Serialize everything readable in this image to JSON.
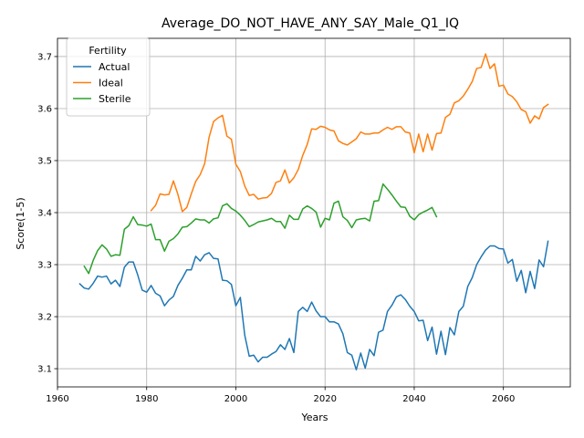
{
  "chart_data": {
    "type": "line",
    "title": "Average_DO_NOT_HAVE_ANY_SAY_Male_Q1_IQ",
    "xlabel": "Years",
    "ylabel": "Score(1-5)",
    "xlim": [
      1960,
      2075
    ],
    "ylim": [
      3.065,
      3.735
    ],
    "xticks": [
      1960,
      1980,
      2000,
      2020,
      2040,
      2060
    ],
    "yticks": [
      3.1,
      3.2,
      3.3,
      3.4,
      3.5,
      3.6,
      3.7
    ],
    "grid": true,
    "legend": {
      "title": "Fertility",
      "placement": "top-left"
    },
    "series": [
      {
        "name": "Actual",
        "color": "#1f77b4",
        "x": [
          1965,
          1966,
          1967,
          1968,
          1969,
          1970,
          1971,
          1972,
          1973,
          1974,
          1975,
          1976,
          1977,
          1978,
          1979,
          1980,
          1981,
          1982,
          1983,
          1984,
          1985,
          1986,
          1987,
          1988,
          1989,
          1990,
          1991,
          1992,
          1993,
          1994,
          1995,
          1996,
          1997,
          1998,
          1999,
          2000,
          2001,
          2002,
          2003,
          2004,
          2005,
          2006,
          2007,
          2008,
          2009,
          2010,
          2011,
          2012,
          2013,
          2014,
          2015,
          2016,
          2017,
          2018,
          2019,
          2020,
          2021,
          2022,
          2023,
          2024,
          2025,
          2026,
          2027,
          2028,
          2029,
          2030,
          2031,
          2032,
          2033,
          2034,
          2035,
          2036,
          2037,
          2038,
          2039,
          2040,
          2041,
          2042,
          2043,
          2044,
          2045,
          2046,
          2047,
          2048,
          2049,
          2050,
          2051,
          2052,
          2053,
          2054,
          2055,
          2056,
          2057,
          2058,
          2059,
          2060,
          2061,
          2062,
          2063,
          2064,
          2065,
          2066,
          2067,
          2068,
          2069,
          2070
        ],
        "values": [
          3.263,
          3.255,
          3.253,
          3.264,
          3.278,
          3.276,
          3.278,
          3.263,
          3.27,
          3.258,
          3.295,
          3.305,
          3.305,
          3.28,
          3.251,
          3.247,
          3.26,
          3.245,
          3.24,
          3.221,
          3.232,
          3.239,
          3.26,
          3.274,
          3.29,
          3.29,
          3.316,
          3.307,
          3.319,
          3.323,
          3.312,
          3.311,
          3.27,
          3.269,
          3.262,
          3.221,
          3.237,
          3.164,
          3.124,
          3.126,
          3.113,
          3.122,
          3.122,
          3.128,
          3.133,
          3.146,
          3.137,
          3.158,
          3.131,
          3.21,
          3.218,
          3.21,
          3.228,
          3.211,
          3.2,
          3.2,
          3.19,
          3.19,
          3.186,
          3.167,
          3.131,
          3.126,
          3.098,
          3.13,
          3.101,
          3.137,
          3.125,
          3.17,
          3.174,
          3.21,
          3.222,
          3.238,
          3.242,
          3.233,
          3.22,
          3.21,
          3.192,
          3.193,
          3.154,
          3.18,
          3.128,
          3.172,
          3.127,
          3.179,
          3.165,
          3.21,
          3.22,
          3.258,
          3.275,
          3.3,
          3.315,
          3.328,
          3.336,
          3.336,
          3.331,
          3.33,
          3.303,
          3.31,
          3.268,
          3.289,
          3.246,
          3.287,
          3.254,
          3.309,
          3.296,
          3.345
        ]
      },
      {
        "name": "Ideal",
        "color": "#ff7f0e",
        "x": [
          1981,
          1982,
          1983,
          1984,
          1985,
          1986,
          1987,
          1988,
          1989,
          1990,
          1991,
          1992,
          1993,
          1994,
          1995,
          1996,
          1997,
          1998,
          1999,
          2000,
          2001,
          2002,
          2003,
          2004,
          2005,
          2006,
          2007,
          2008,
          2009,
          2010,
          2011,
          2012,
          2013,
          2014,
          2015,
          2016,
          2017,
          2018,
          2019,
          2020,
          2021,
          2022,
          2023,
          2024,
          2025,
          2026,
          2027,
          2028,
          2029,
          2030,
          2031,
          2032,
          2033,
          2034,
          2035,
          2036,
          2037,
          2038,
          2039,
          2040,
          2041,
          2042,
          2043,
          2044,
          2045,
          2046,
          2047,
          2048,
          2049,
          2050,
          2051,
          2052,
          2053,
          2054,
          2055,
          2056,
          2057,
          2058,
          2059,
          2060,
          2061,
          2062,
          2063,
          2064,
          2065,
          2066,
          2067,
          2068,
          2069,
          2070
        ],
        "values": [
          3.404,
          3.414,
          3.436,
          3.434,
          3.435,
          3.461,
          3.435,
          3.402,
          3.41,
          3.436,
          3.46,
          3.473,
          3.494,
          3.545,
          3.575,
          3.582,
          3.587,
          3.547,
          3.541,
          3.493,
          3.479,
          3.451,
          3.433,
          3.435,
          3.426,
          3.428,
          3.429,
          3.437,
          3.458,
          3.461,
          3.482,
          3.457,
          3.467,
          3.483,
          3.51,
          3.531,
          3.561,
          3.56,
          3.566,
          3.564,
          3.559,
          3.557,
          3.538,
          3.533,
          3.53,
          3.536,
          3.542,
          3.555,
          3.551,
          3.551,
          3.553,
          3.553,
          3.559,
          3.564,
          3.56,
          3.565,
          3.565,
          3.555,
          3.553,
          3.515,
          3.551,
          3.517,
          3.551,
          3.52,
          3.552,
          3.553,
          3.583,
          3.589,
          3.611,
          3.615,
          3.624,
          3.637,
          3.652,
          3.677,
          3.679,
          3.705,
          3.677,
          3.686,
          3.643,
          3.645,
          3.628,
          3.623,
          3.613,
          3.598,
          3.594,
          3.572,
          3.586,
          3.58,
          3.602,
          3.608
        ]
      },
      {
        "name": "Sterile",
        "color": "#2ca02c",
        "x": [
          1966,
          1967,
          1968,
          1969,
          1970,
          1971,
          1972,
          1973,
          1974,
          1975,
          1976,
          1977,
          1978,
          1979,
          1980,
          1981,
          1982,
          1983,
          1984,
          1985,
          1986,
          1987,
          1988,
          1989,
          1990,
          1991,
          1992,
          1993,
          1994,
          1995,
          1996,
          1997,
          1998,
          1999,
          2000,
          2001,
          2002,
          2003,
          2004,
          2005,
          2006,
          2007,
          2008,
          2009,
          2010,
          2011,
          2012,
          2013,
          2014,
          2015,
          2016,
          2017,
          2018,
          2019,
          2020,
          2021,
          2022,
          2023,
          2024,
          2025,
          2026,
          2027,
          2028,
          2029,
          2030,
          2031,
          2032,
          2033,
          2034,
          2035,
          2036,
          2037,
          2038,
          2039,
          2040,
          2041,
          2042,
          2043,
          2044,
          2045
        ],
        "values": [
          3.297,
          3.283,
          3.308,
          3.327,
          3.338,
          3.33,
          3.316,
          3.319,
          3.318,
          3.368,
          3.375,
          3.392,
          3.377,
          3.376,
          3.374,
          3.378,
          3.348,
          3.348,
          3.326,
          3.345,
          3.35,
          3.359,
          3.372,
          3.373,
          3.38,
          3.388,
          3.386,
          3.386,
          3.38,
          3.388,
          3.39,
          3.413,
          3.417,
          3.408,
          3.403,
          3.395,
          3.385,
          3.373,
          3.377,
          3.382,
          3.384,
          3.386,
          3.389,
          3.383,
          3.383,
          3.37,
          3.395,
          3.387,
          3.387,
          3.407,
          3.413,
          3.408,
          3.401,
          3.372,
          3.389,
          3.386,
          3.418,
          3.422,
          3.392,
          3.385,
          3.371,
          3.386,
          3.388,
          3.389,
          3.384,
          3.422,
          3.423,
          3.455,
          3.445,
          3.434,
          3.422,
          3.411,
          3.41,
          3.393,
          3.386,
          3.396,
          3.401,
          3.405,
          3.41,
          3.392
        ]
      }
    ]
  }
}
